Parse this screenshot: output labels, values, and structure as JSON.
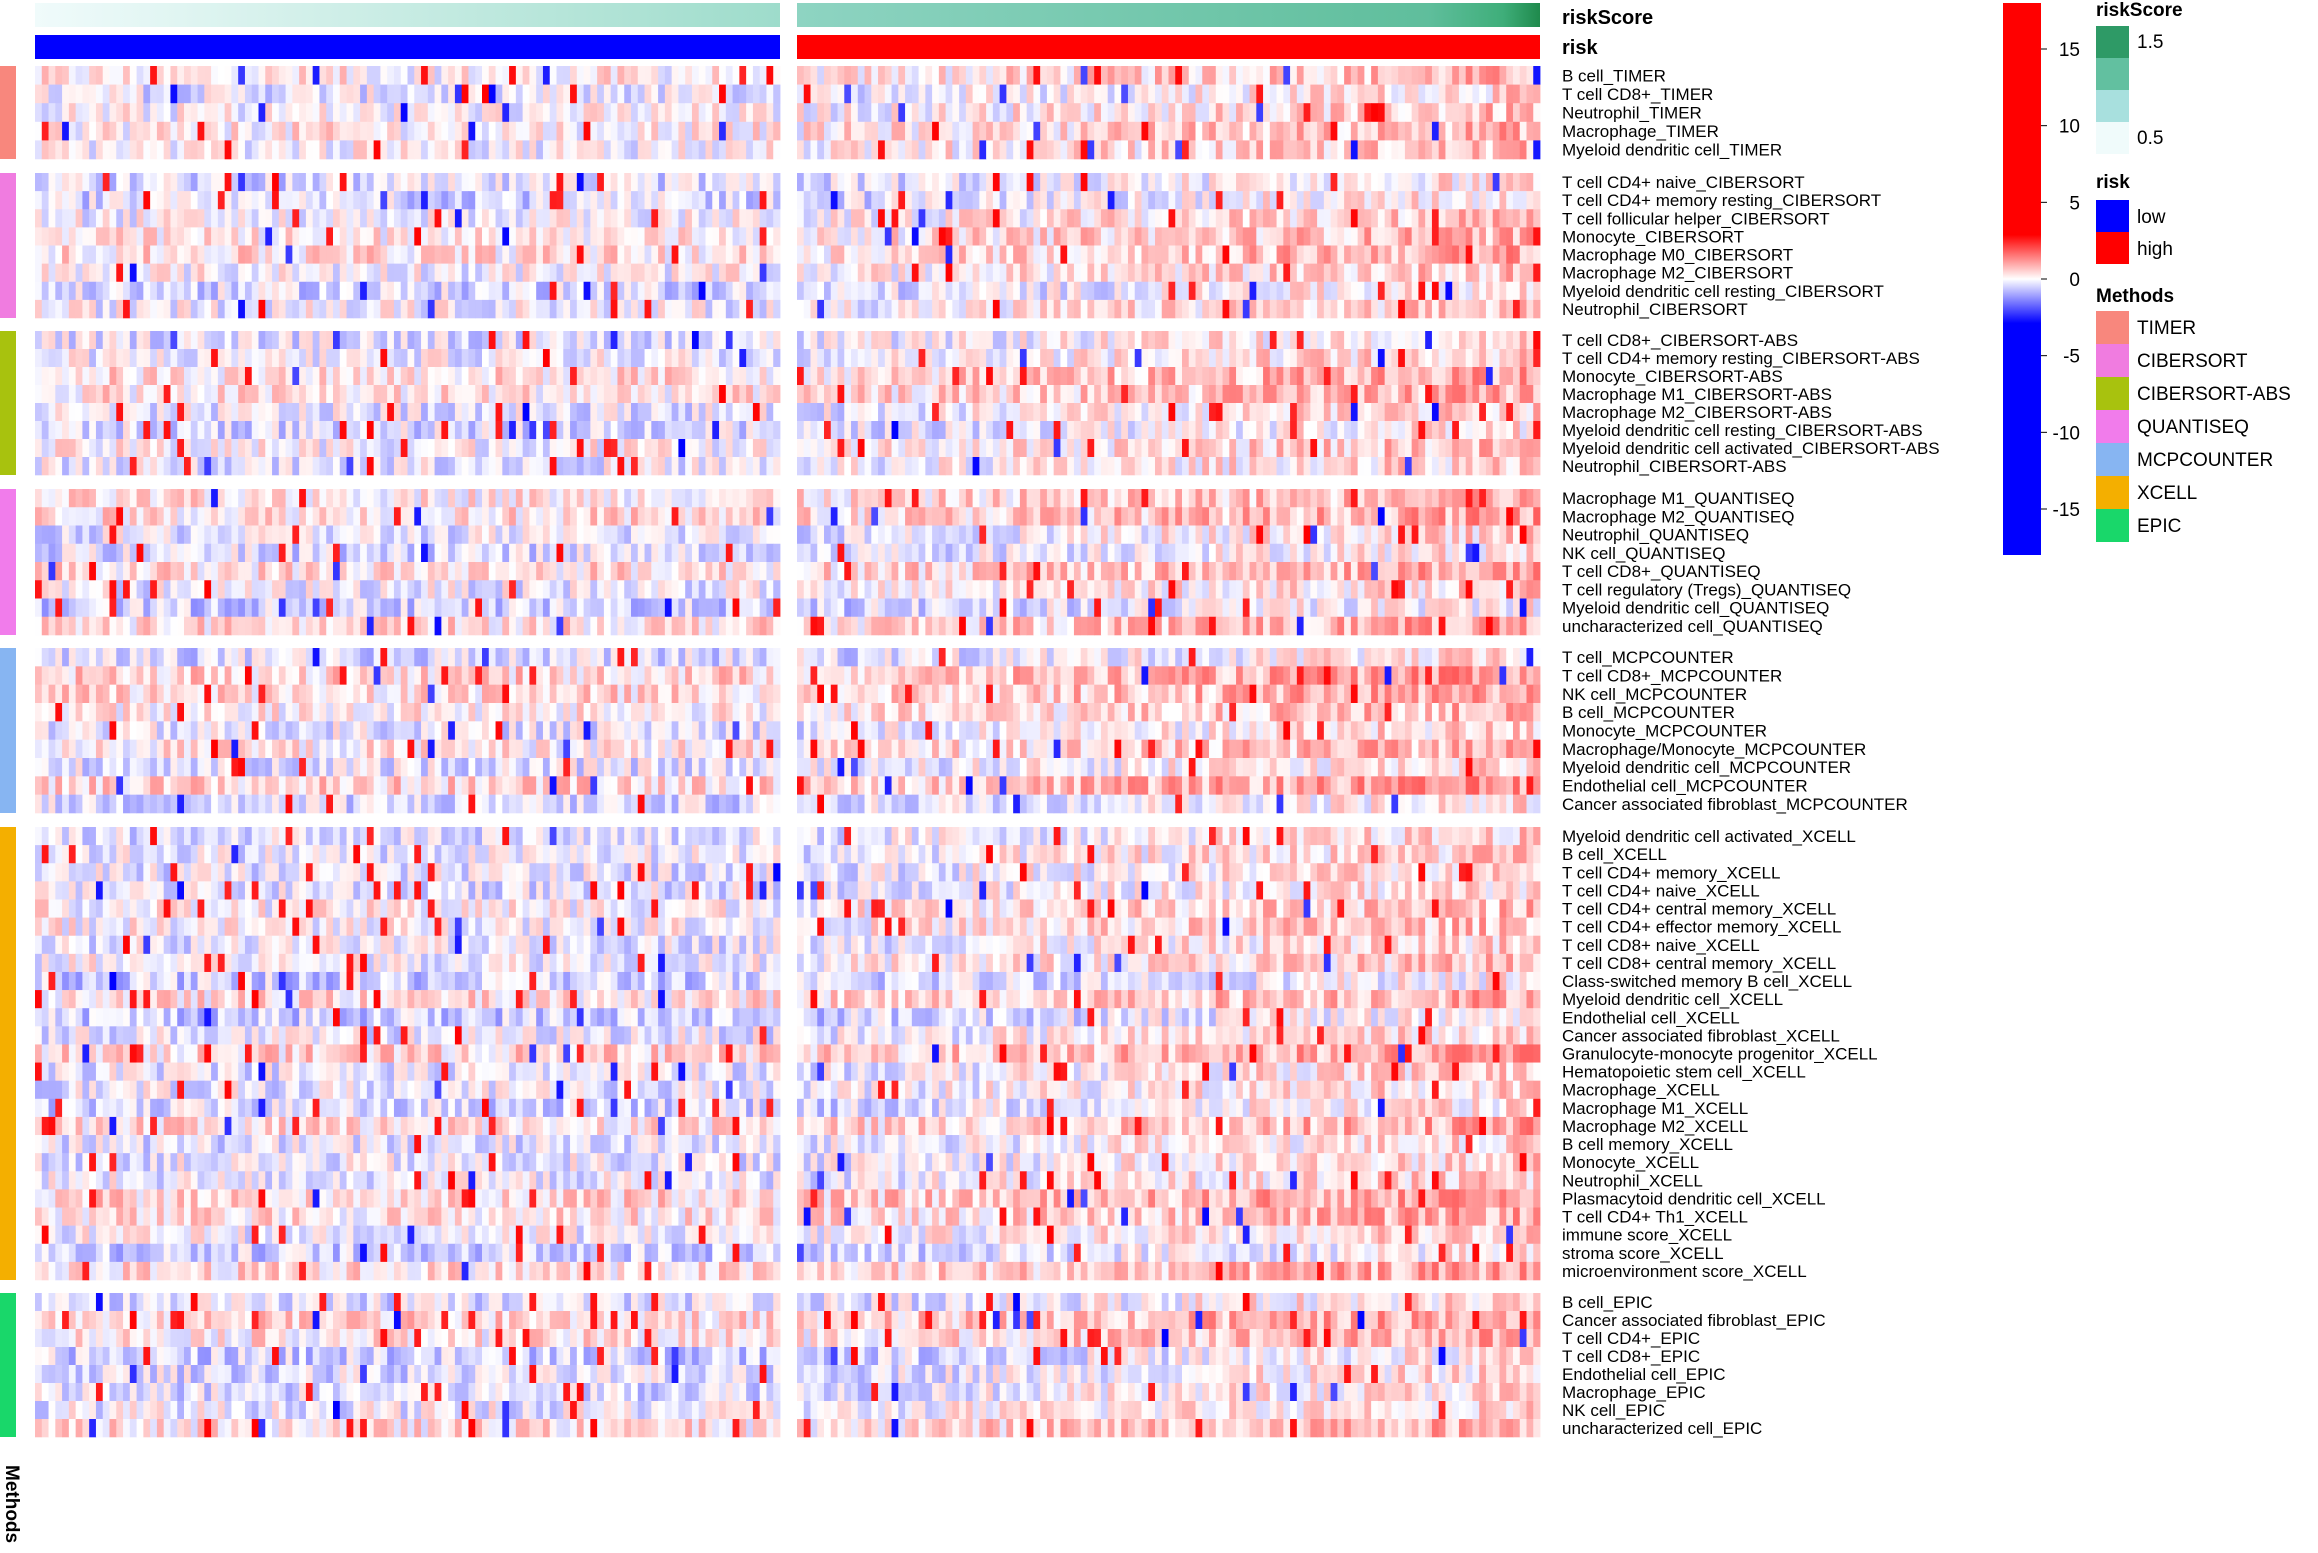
{
  "chart_data": {
    "type": "heatmap",
    "title": "",
    "annotations": {
      "riskScore_label": "riskScore",
      "risk_label": "risk",
      "methods_label": "Methods"
    },
    "groups": [
      {
        "name": "low",
        "n_samples": 110
      },
      {
        "name": "high",
        "n_samples": 110
      }
    ],
    "methods": [
      {
        "name": "TIMER",
        "color": "#F8877D",
        "rows": [
          "B cell_TIMER",
          "T cell CD8+_TIMER",
          "Neutrophil_TIMER",
          "Macrophage_TIMER",
          "Myeloid dendritic cell_TIMER"
        ]
      },
      {
        "name": "CIBERSORT",
        "color": "#F07CE0",
        "rows": [
          "T cell CD4+ naive_CIBERSORT",
          "T cell CD4+ memory resting_CIBERSORT",
          "T cell follicular helper_CIBERSORT",
          "Monocyte_CIBERSORT",
          "Macrophage M0_CIBERSORT",
          "Macrophage M2_CIBERSORT",
          "Myeloid dendritic cell resting_CIBERSORT",
          "Neutrophil_CIBERSORT"
        ]
      },
      {
        "name": "CIBERSORT-ABS",
        "color": "#A8C20E",
        "rows": [
          "T cell CD8+_CIBERSORT-ABS",
          "T cell CD4+ memory resting_CIBERSORT-ABS",
          "Monocyte_CIBERSORT-ABS",
          "Macrophage M1_CIBERSORT-ABS",
          "Macrophage M2_CIBERSORT-ABS",
          "Myeloid dendritic cell resting_CIBERSORT-ABS",
          "Myeloid dendritic cell activated_CIBERSORT-ABS",
          "Neutrophil_CIBERSORT-ABS"
        ]
      },
      {
        "name": "QUANTISEQ",
        "color": "#F17CEB",
        "rows": [
          "Macrophage M1_QUANTISEQ",
          "Macrophage M2_QUANTISEQ",
          "Neutrophil_QUANTISEQ",
          "NK cell_QUANTISEQ",
          "T cell CD8+_QUANTISEQ",
          "T cell regulatory (Tregs)_QUANTISEQ",
          "Myeloid dendritic cell_QUANTISEQ",
          "uncharacterized cell_QUANTISEQ"
        ]
      },
      {
        "name": "MCPCOUNTER",
        "color": "#87B5F2",
        "rows": [
          "T cell_MCPCOUNTER",
          "T cell CD8+_MCPCOUNTER",
          "NK cell_MCPCOUNTER",
          "B cell_MCPCOUNTER",
          "Monocyte_MCPCOUNTER",
          "Macrophage/Monocyte_MCPCOUNTER",
          "Myeloid dendritic cell_MCPCOUNTER",
          "Endothelial cell_MCPCOUNTER",
          "Cancer associated fibroblast_MCPCOUNTER"
        ]
      },
      {
        "name": "XCELL",
        "color": "#F4AF00",
        "rows": [
          "Myeloid dendritic cell activated_XCELL",
          "B cell_XCELL",
          "T cell CD4+ memory_XCELL",
          "T cell CD4+ naive_XCELL",
          "T cell CD4+ central memory_XCELL",
          "T cell CD4+ effector memory_XCELL",
          "T cell CD8+ naive_XCELL",
          "T cell CD8+ central memory_XCELL",
          "Class-switched memory B cell_XCELL",
          "Myeloid dendritic cell_XCELL",
          "Endothelial cell_XCELL",
          "Cancer associated fibroblast_XCELL",
          "Granulocyte-monocyte progenitor_XCELL",
          "Hematopoietic stem cell_XCELL",
          "Macrophage_XCELL",
          "Macrophage M1_XCELL",
          "Macrophage M2_XCELL",
          "B cell memory_XCELL",
          "Monocyte_XCELL",
          "Neutrophil_XCELL",
          "Plasmacytoid dendritic cell_XCELL",
          "T cell CD4+ Th1_XCELL",
          "immune score_XCELL",
          "stroma score_XCELL",
          "microenvironment score_XCELL"
        ]
      },
      {
        "name": "EPIC",
        "color": "#19D76A",
        "rows": [
          "B cell_EPIC",
          "Cancer associated fibroblast_EPIC",
          "T cell CD4+_EPIC",
          "T cell CD8+_EPIC",
          "Endothelial cell_EPIC",
          "Macrophage_EPIC",
          "NK cell_EPIC",
          "uncharacterized cell_EPIC"
        ]
      }
    ],
    "colorbar": {
      "ticks": [
        15,
        10,
        5,
        0,
        -5,
        -10,
        -15
      ],
      "range": [
        -18,
        18
      ],
      "colors": {
        "low": "#0000FF",
        "mid": "#FFFFFF",
        "high": "#FF0000"
      }
    },
    "legends": {
      "riskScore": {
        "title": "riskScore",
        "ticks": [
          "1.5",
          "0.5"
        ],
        "colors": [
          "#2E9A66",
          "#62C0A0",
          "#A8E0DE",
          "#F0FBFB"
        ]
      },
      "risk": {
        "title": "risk",
        "items": [
          {
            "label": "low",
            "color": "#0000FF"
          },
          {
            "label": "high",
            "color": "#FF0000"
          }
        ]
      },
      "methods": {
        "title": "Methods"
      }
    }
  }
}
